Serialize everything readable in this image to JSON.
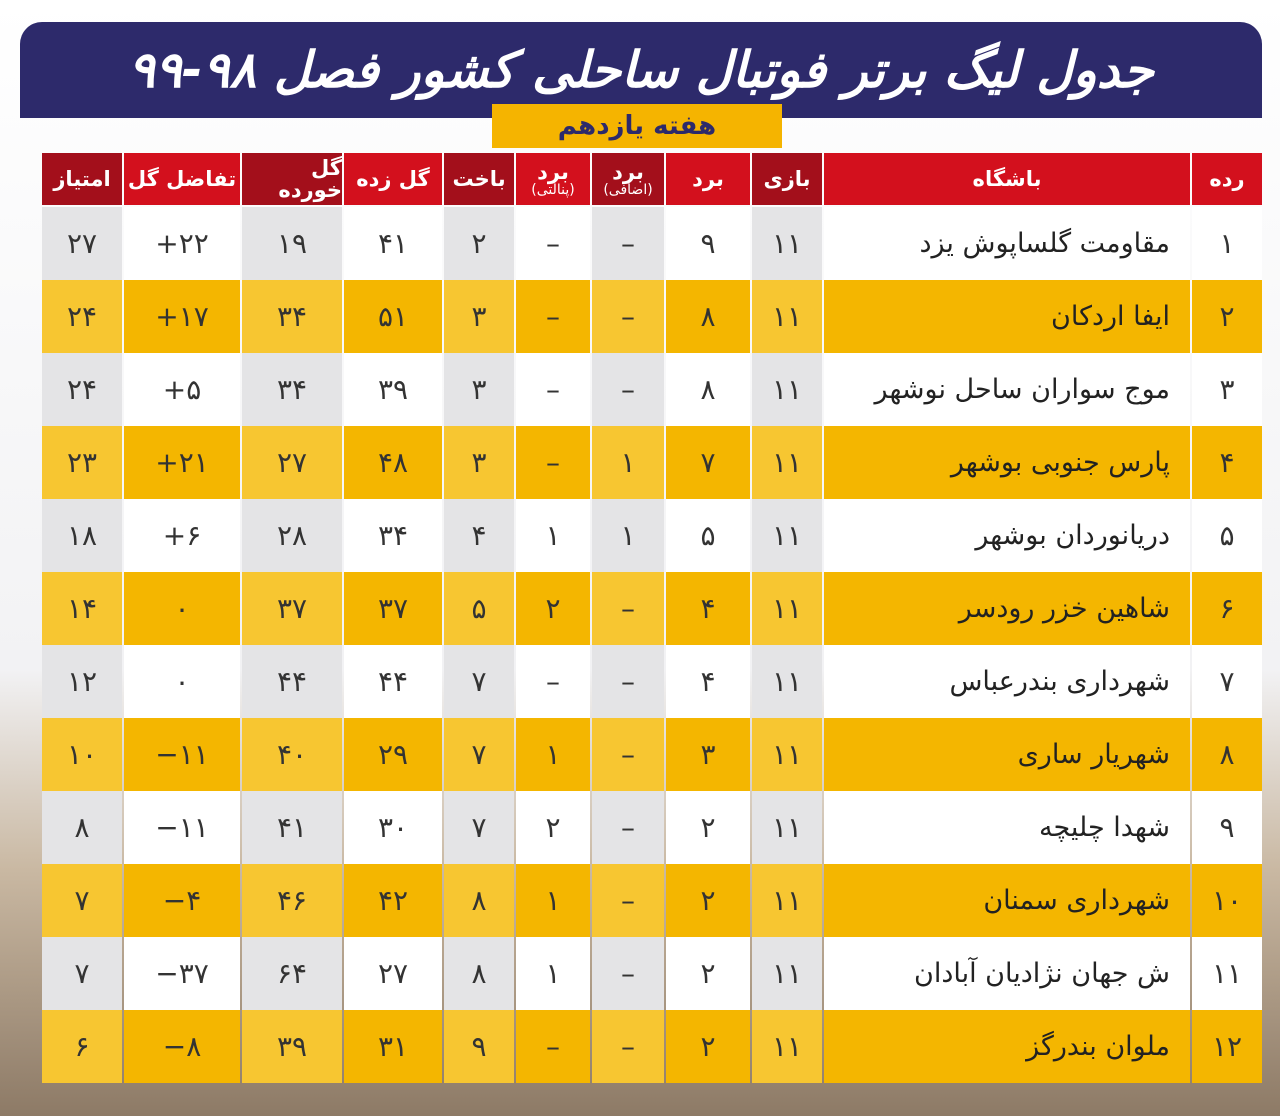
{
  "header": {
    "title": "جدول لیگ برتر فوتبال ساحلی کشور فصل ۹۸-۹۹",
    "subtitle": "هفته یازدهم"
  },
  "table": {
    "headers": [
      [
        "رده"
      ],
      [
        "باشگاه"
      ],
      [
        "بازی"
      ],
      [
        "برد"
      ],
      [
        "برد",
        "(اضافی)"
      ],
      [
        "برد",
        "(پنالتی)"
      ],
      [
        "باخت"
      ],
      [
        "گل زده"
      ],
      [
        "گل خورده"
      ],
      [
        "تفاضل گل"
      ],
      [
        "امتیاز"
      ]
    ],
    "rows": [
      [
        "۱",
        "مقاومت گلساپوش یزد",
        "۱۱",
        "۹",
        "–",
        "–",
        "۲",
        "۴۱",
        "۱۹",
        "+۲۲",
        "۲۷"
      ],
      [
        "۲",
        "ایفا اردکان",
        "۱۱",
        "۸",
        "–",
        "–",
        "۳",
        "۵۱",
        "۳۴",
        "+۱۷",
        "۲۴"
      ],
      [
        "۳",
        "موج سواران ساحل نوشهر",
        "۱۱",
        "۸",
        "–",
        "–",
        "۳",
        "۳۹",
        "۳۴",
        "+۵",
        "۲۴"
      ],
      [
        "۴",
        "پارس جنوبی بوشهر",
        "۱۱",
        "۷",
        "۱",
        "–",
        "۳",
        "۴۸",
        "۲۷",
        "+۲۱",
        "۲۳"
      ],
      [
        "۵",
        "دریانوردان بوشهر",
        "۱۱",
        "۵",
        "۱",
        "۱",
        "۴",
        "۳۴",
        "۲۸",
        "+۶",
        "۱۸"
      ],
      [
        "۶",
        "شاهین خزر رودسر",
        "۱۱",
        "۴",
        "–",
        "۲",
        "۵",
        "۳۷",
        "۳۷",
        "۰",
        "۱۴"
      ],
      [
        "۷",
        "شهرداری بندرعباس",
        "۱۱",
        "۴",
        "–",
        "–",
        "۷",
        "۴۴",
        "۴۴",
        "۰",
        "۱۲"
      ],
      [
        "۸",
        "شهریار ساری",
        "۱۱",
        "۳",
        "–",
        "۱",
        "۷",
        "۲۹",
        "۴۰",
        "−۱۱",
        "۱۰"
      ],
      [
        "۹",
        "شهدا چلیچه",
        "۱۱",
        "۲",
        "–",
        "۲",
        "۷",
        "۳۰",
        "۴۱",
        "−۱۱",
        "۸"
      ],
      [
        "۱۰",
        "شهرداری سمنان",
        "۱۱",
        "۲",
        "–",
        "۱",
        "۸",
        "۴۲",
        "۴۶",
        "−۴",
        "۷"
      ],
      [
        "۱۱",
        "ش جهان نژادیان آبادان",
        "۱۱",
        "۲",
        "–",
        "۱",
        "۸",
        "۲۷",
        "۶۴",
        "−۳۷",
        "۷"
      ],
      [
        "۱۲",
        "ملوان بندرگز",
        "۱۱",
        "۲",
        "–",
        "–",
        "۹",
        "۳۱",
        "۳۹",
        "−۸",
        "۶"
      ]
    ]
  }
}
